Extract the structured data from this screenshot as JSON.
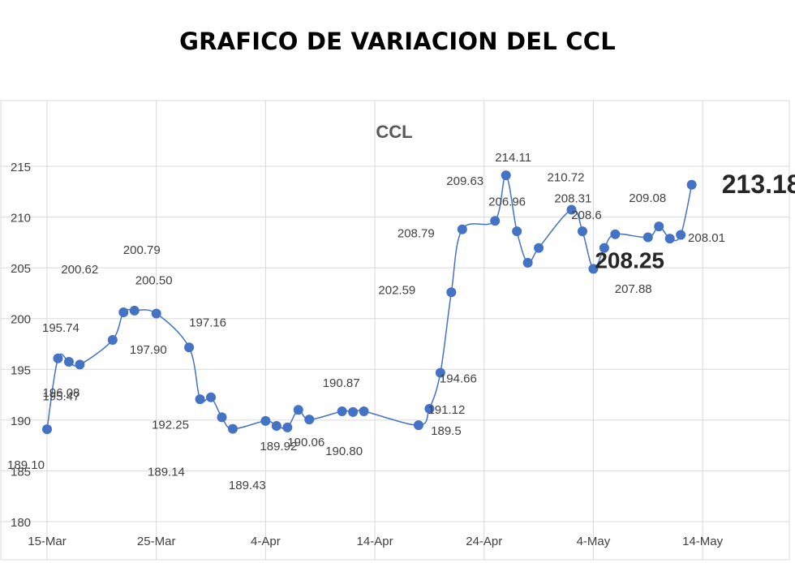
{
  "page": {
    "title": "GRAFICO DE VARIACION DEL CCL"
  },
  "colors": {
    "series": "#4472c4",
    "grid": "#d9d9d9",
    "text": "#404040"
  },
  "chart_data": {
    "type": "line",
    "title": "CCL",
    "xlabel": "",
    "ylabel": "",
    "ylim": [
      180,
      215
    ],
    "yticks": [
      180,
      185,
      190,
      195,
      200,
      205,
      210,
      215
    ],
    "xlim": [
      "2021-03-15",
      "2021-05-18"
    ],
    "xticks": [
      {
        "date": "2021-03-15",
        "label": "15-Mar"
      },
      {
        "date": "2021-03-25",
        "label": "25-Mar"
      },
      {
        "date": "2021-04-04",
        "label": "4-Apr"
      },
      {
        "date": "2021-04-14",
        "label": "14-Apr"
      },
      {
        "date": "2021-04-24",
        "label": "24-Apr"
      },
      {
        "date": "2021-05-04",
        "label": "4-May"
      },
      {
        "date": "2021-05-14",
        "label": "14-May"
      }
    ],
    "grid": true,
    "legend": "none",
    "series": [
      {
        "color": "#4472c4",
        "points": [
          {
            "x": "2021-03-15",
            "y": 189.1,
            "label": "189.10"
          },
          {
            "x": "2021-03-16",
            "y": 196.08,
            "label": "196.08"
          },
          {
            "x": "2021-03-17",
            "y": 195.74,
            "label": "195.74"
          },
          {
            "x": "2021-03-18",
            "y": 195.47,
            "label": "195.47"
          },
          {
            "x": "2021-03-21",
            "y": 197.9,
            "label": "197.90"
          },
          {
            "x": "2021-03-22",
            "y": 200.62,
            "label": "200.62"
          },
          {
            "x": "2021-03-23",
            "y": 200.79,
            "label": "200.79"
          },
          {
            "x": "2021-03-25",
            "y": 200.5,
            "label": "200.50"
          },
          {
            "x": "2021-03-28",
            "y": 197.16,
            "label": "197.16"
          },
          {
            "x": "2021-03-29",
            "y": 192.06,
            "label": ""
          },
          {
            "x": "2021-03-30",
            "y": 192.25,
            "label": "192.25"
          },
          {
            "x": "2021-03-31",
            "y": 190.28,
            "label": ""
          },
          {
            "x": "2021-04-01",
            "y": 189.14,
            "label": "189.14"
          },
          {
            "x": "2021-04-04",
            "y": 189.92,
            "label": "189.92"
          },
          {
            "x": "2021-04-05",
            "y": 189.43,
            "label": "189.43"
          },
          {
            "x": "2021-04-06",
            "y": 189.28,
            "label": ""
          },
          {
            "x": "2021-04-07",
            "y": 191.01,
            "label": ""
          },
          {
            "x": "2021-04-08",
            "y": 190.06,
            "label": "190.06"
          },
          {
            "x": "2021-04-11",
            "y": 190.87,
            "label": "190.87"
          },
          {
            "x": "2021-04-12",
            "y": 190.8,
            "label": "190.80"
          },
          {
            "x": "2021-04-13",
            "y": 190.87,
            "label": ""
          },
          {
            "x": "2021-04-18",
            "y": 189.5,
            "label": "189.5"
          },
          {
            "x": "2021-04-19",
            "y": 191.12,
            "label": "191.12"
          },
          {
            "x": "2021-04-20",
            "y": 194.66,
            "label": "194.66"
          },
          {
            "x": "2021-04-21",
            "y": 202.59,
            "label": "202.59"
          },
          {
            "x": "2021-04-22",
            "y": 208.79,
            "label": "208.79"
          },
          {
            "x": "2021-04-25",
            "y": 209.63,
            "label": "209.63"
          },
          {
            "x": "2021-04-26",
            "y": 214.11,
            "label": "214.11"
          },
          {
            "x": "2021-04-27",
            "y": 208.6,
            "label": ""
          },
          {
            "x": "2021-04-28",
            "y": 205.5,
            "label": ""
          },
          {
            "x": "2021-04-29",
            "y": 206.96,
            "label": "206.96"
          },
          {
            "x": "2021-05-02",
            "y": 210.72,
            "label": "210.72"
          },
          {
            "x": "2021-05-03",
            "y": 208.6,
            "label": "208.6"
          },
          {
            "x": "2021-05-04",
            "y": 204.9,
            "label": ""
          },
          {
            "x": "2021-05-05",
            "y": 206.96,
            "label": ""
          },
          {
            "x": "2021-05-06",
            "y": 208.31,
            "label": "208.31"
          },
          {
            "x": "2021-05-09",
            "y": 208.01,
            "label": ""
          },
          {
            "x": "2021-05-10",
            "y": 209.08,
            "label": "209.08"
          },
          {
            "x": "2021-05-11",
            "y": 207.88,
            "label": "207.88"
          },
          {
            "x": "2021-05-12",
            "y": 208.25,
            "label": "208.25"
          },
          {
            "x": "2021-05-13",
            "y": 213.18,
            "label": "213.18"
          }
        ]
      }
    ],
    "annotations": [
      {
        "text": "208.01"
      },
      {
        "text": "208.25",
        "emphasis": true
      },
      {
        "text": "213.18",
        "emphasis": true
      }
    ]
  }
}
